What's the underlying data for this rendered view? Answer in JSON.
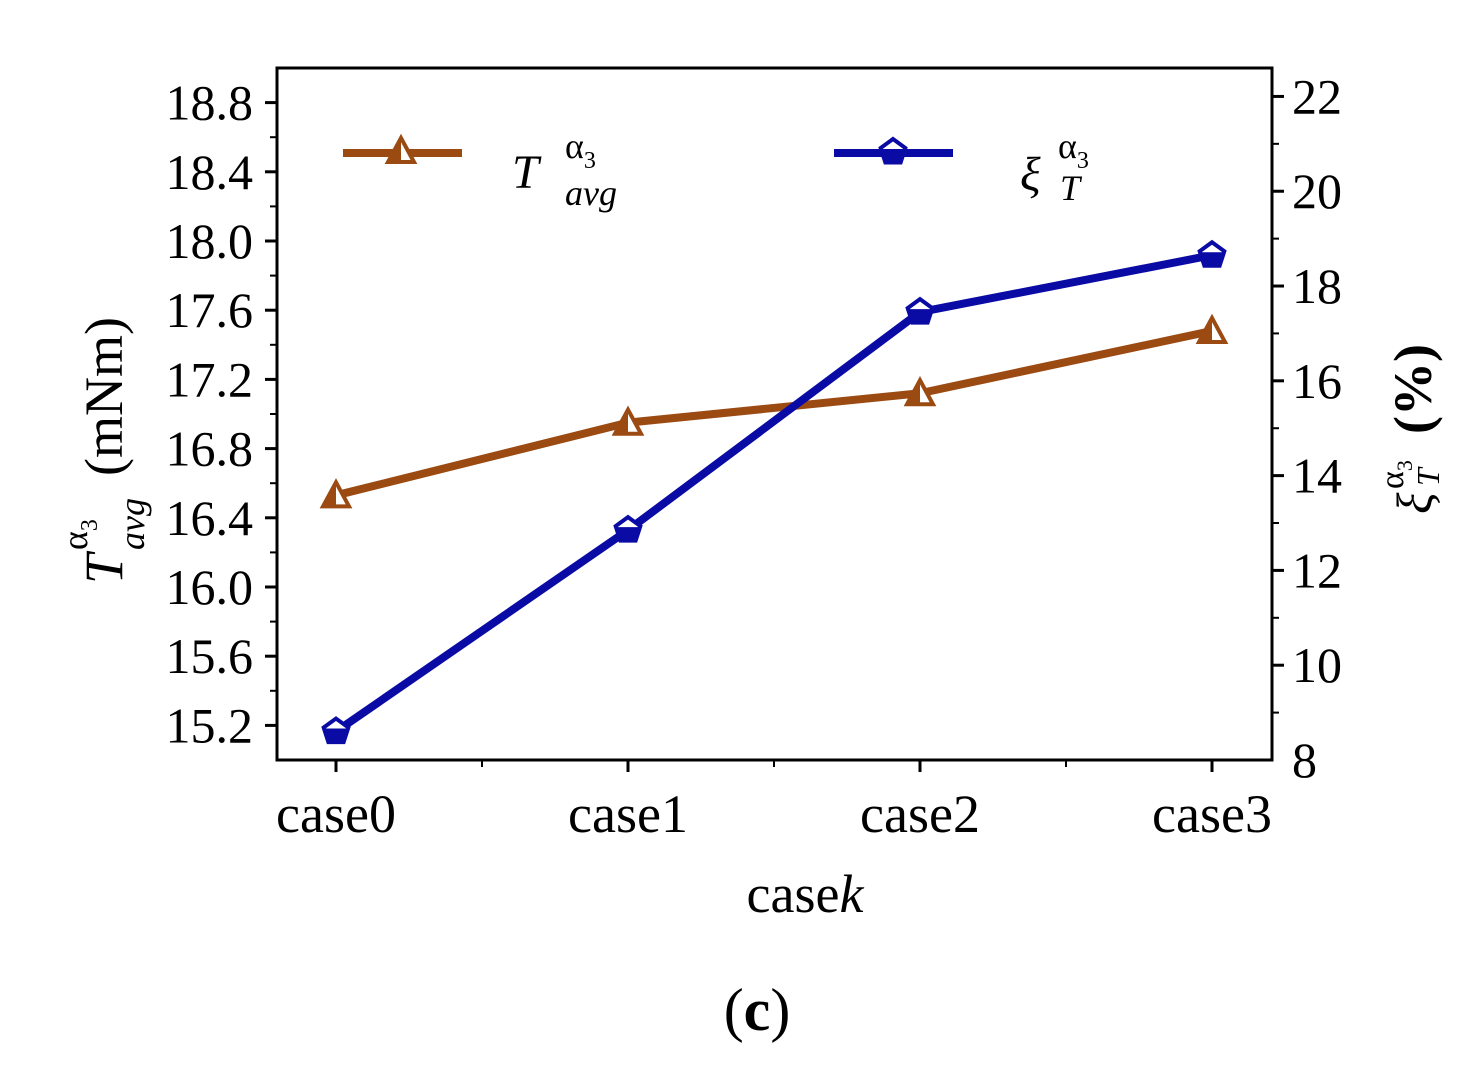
{
  "colors": {
    "torque": "#9B4A12",
    "ripple": "#0A0AA5",
    "axis": "#000000"
  },
  "panel_label": {
    "open": "(",
    "letter": "c",
    "close": ")"
  },
  "chart_data": {
    "type": "line",
    "categories": [
      "case0",
      "case1",
      "case2",
      "case3"
    ],
    "xlabel": {
      "prefix": "case",
      "var": "k"
    },
    "y_left": {
      "label": {
        "sym": "T",
        "sup": "α",
        "sup_sub": "3",
        "sub": "avg",
        "unit": "(mNm)"
      },
      "range": [
        15.0,
        19.0
      ],
      "ticks": [
        15.2,
        15.6,
        16.0,
        16.4,
        16.8,
        17.2,
        17.6,
        18.0,
        18.4,
        18.8
      ],
      "tick_labels": [
        "15.2",
        "15.6",
        "16.0",
        "16.4",
        "16.8",
        "17.2",
        "17.6",
        "18.0",
        "18.4",
        "18.8"
      ],
      "minor_step": 0.2
    },
    "y_right": {
      "label": {
        "sym": "ξ",
        "sup": "α",
        "sup_sub": "3",
        "sub": "T",
        "unit": "(%)"
      },
      "range": [
        8,
        22.6
      ],
      "ticks": [
        8,
        10,
        12,
        14,
        16,
        18,
        20,
        22
      ],
      "tick_labels": [
        "8",
        "10",
        "12",
        "14",
        "16",
        "18",
        "20",
        "22"
      ],
      "minor_step": 1
    },
    "series": [
      {
        "name": "T avg alpha3",
        "axis": "left",
        "marker": "triangle",
        "values": [
          16.53,
          16.95,
          17.12,
          17.48
        ],
        "legend": {
          "sym": "T",
          "sup": "α",
          "sup_sub": "3",
          "sub": "avg"
        }
      },
      {
        "name": "xi T alpha3",
        "axis": "right",
        "marker": "pentagon",
        "values": [
          8.6,
          12.85,
          17.45,
          18.65
        ],
        "legend": {
          "sym": "ξ",
          "sup": "α",
          "sup_sub": "3",
          "sub": "T"
        }
      }
    ]
  }
}
